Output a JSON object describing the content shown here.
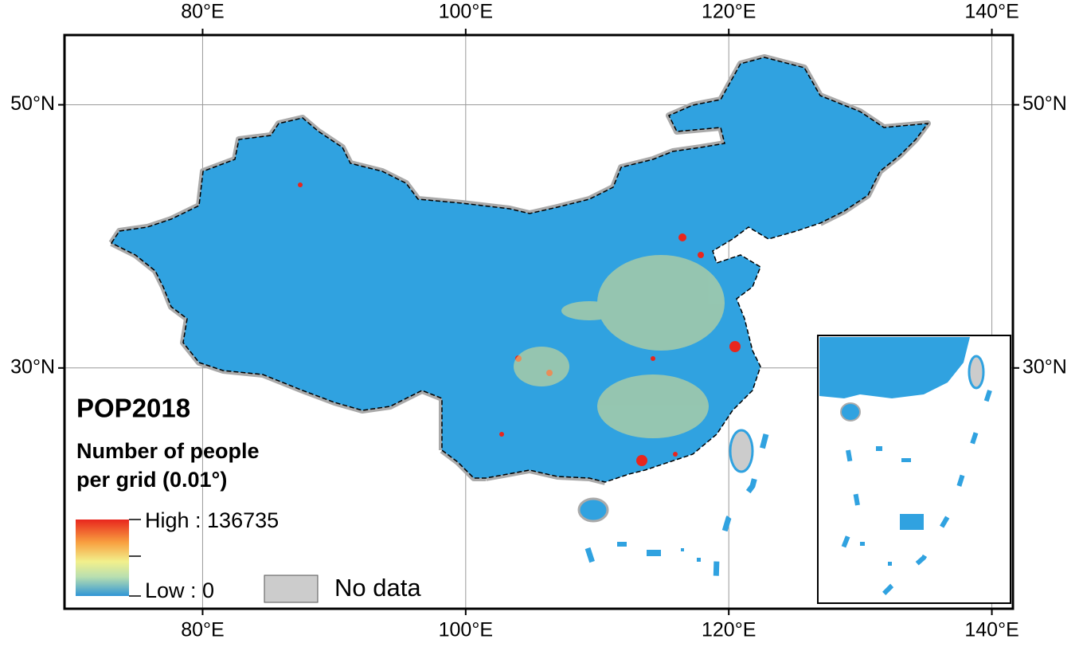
{
  "map": {
    "lonlim": [
      69.5,
      141.6
    ],
    "latlim": [
      11.7,
      55.3
    ],
    "lon_ticks": [
      {
        "value": 80,
        "label": "80°E"
      },
      {
        "value": 100,
        "label": "100°E"
      },
      {
        "value": 120,
        "label": "120°E"
      },
      {
        "value": 140,
        "label": "140°E"
      }
    ],
    "lat_ticks": [
      {
        "value": 50,
        "label": "50°N"
      },
      {
        "value": 30,
        "label": "30°N"
      }
    ],
    "grid": true
  },
  "legend": {
    "title": "POP2018",
    "subtitle": [
      "Number of people",
      "per grid (0.01°)"
    ],
    "high": "High : 136735",
    "low": "Low : 0",
    "no_data": "No data"
  }
}
